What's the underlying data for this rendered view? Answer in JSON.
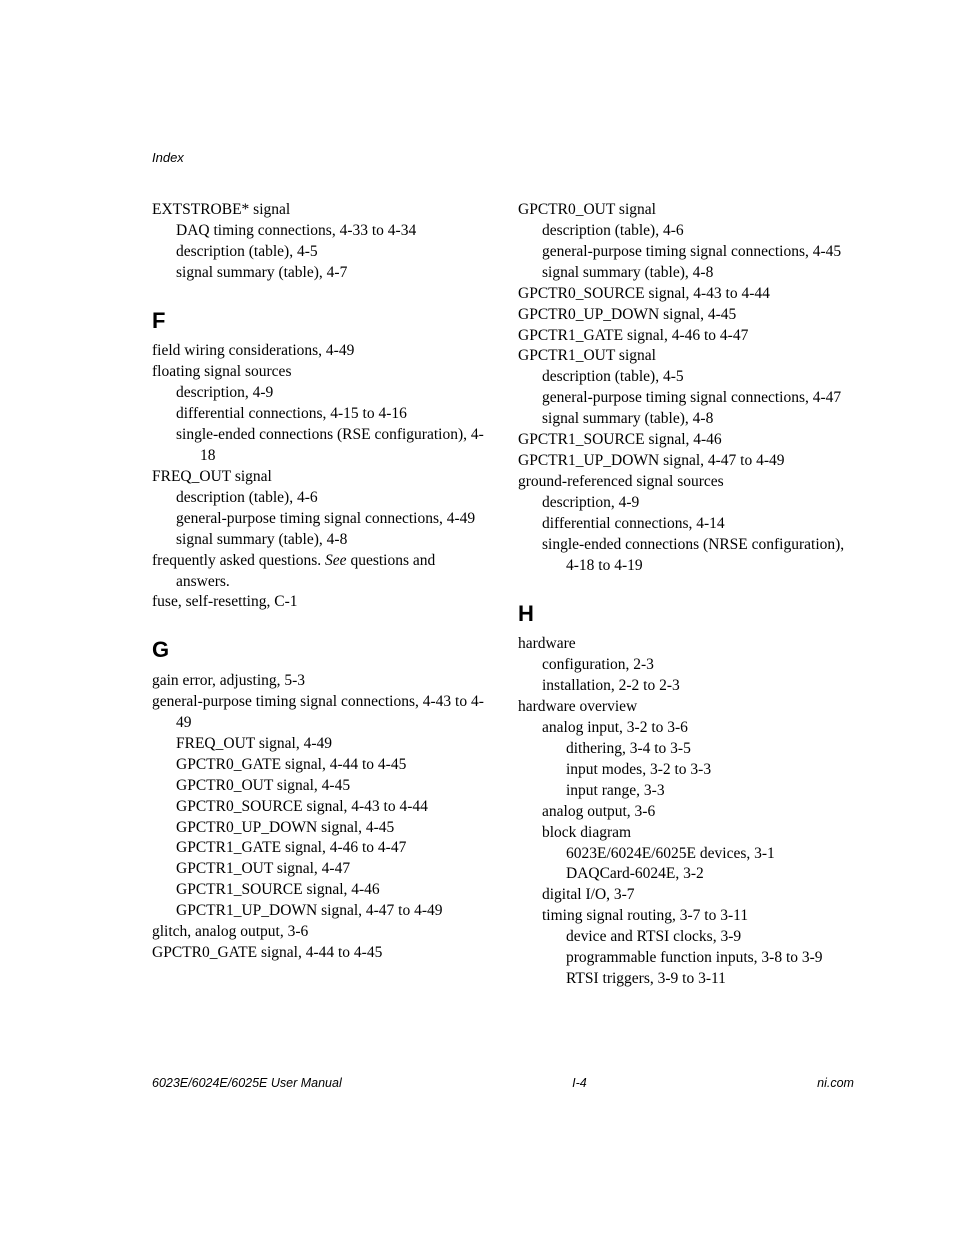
{
  "header": "Index",
  "footer": {
    "left": "6023E/6024E/6025E User Manual",
    "center": "I-4",
    "right": "ni.com"
  },
  "leftCol": [
    {
      "type": "entry",
      "level": 0,
      "text": "EXTSTROBE* signal"
    },
    {
      "type": "entry",
      "level": 1,
      "text": "DAQ timing connections, 4-33 to 4-34"
    },
    {
      "type": "entry",
      "level": 1,
      "text": "description (table), 4-5"
    },
    {
      "type": "entry",
      "level": 1,
      "text": "signal summary (table), 4-7"
    },
    {
      "type": "letter",
      "text": "F"
    },
    {
      "type": "entry",
      "level": 0,
      "text": "field wiring considerations, 4-49"
    },
    {
      "type": "entry",
      "level": 0,
      "text": "floating signal sources"
    },
    {
      "type": "entry",
      "level": 1,
      "text": "description, 4-9"
    },
    {
      "type": "entry",
      "level": 1,
      "text": "differential connections, 4-15 to 4-16"
    },
    {
      "type": "entry",
      "level": 1,
      "text": "single-ended connections (RSE configuration), 4-18"
    },
    {
      "type": "entry",
      "level": 0,
      "text": "FREQ_OUT signal"
    },
    {
      "type": "entry",
      "level": 1,
      "text": "description (table), 4-6"
    },
    {
      "type": "entry",
      "level": 1,
      "text": "general-purpose timing signal connections, 4-49"
    },
    {
      "type": "entry",
      "level": 1,
      "text": "signal summary (table), 4-8"
    },
    {
      "type": "entry-mixed",
      "level": 0,
      "pre": "frequently asked questions. ",
      "italic": "See",
      "post": " questions and answers."
    },
    {
      "type": "entry",
      "level": 0,
      "text": "fuse, self-resetting, C-1"
    },
    {
      "type": "letter",
      "text": "G"
    },
    {
      "type": "entry",
      "level": 0,
      "text": "gain error, adjusting, 5-3"
    },
    {
      "type": "entry",
      "level": 0,
      "text": "general-purpose timing signal connections, 4-43 to 4-49"
    },
    {
      "type": "entry",
      "level": 1,
      "text": "FREQ_OUT signal, 4-49"
    },
    {
      "type": "entry",
      "level": 1,
      "text": "GPCTR0_GATE signal, 4-44 to 4-45"
    },
    {
      "type": "entry",
      "level": 1,
      "text": "GPCTR0_OUT signal, 4-45"
    },
    {
      "type": "entry",
      "level": 1,
      "text": "GPCTR0_SOURCE signal, 4-43 to 4-44"
    },
    {
      "type": "entry",
      "level": 1,
      "text": "GPCTR0_UP_DOWN signal, 4-45"
    },
    {
      "type": "entry",
      "level": 1,
      "text": "GPCTR1_GATE signal, 4-46 to 4-47"
    },
    {
      "type": "entry",
      "level": 1,
      "text": "GPCTR1_OUT signal, 4-47"
    },
    {
      "type": "entry",
      "level": 1,
      "text": "GPCTR1_SOURCE signal, 4-46"
    },
    {
      "type": "entry",
      "level": 1,
      "text": "GPCTR1_UP_DOWN signal, 4-47 to 4-49"
    },
    {
      "type": "entry",
      "level": 0,
      "text": "glitch, analog output, 3-6"
    },
    {
      "type": "entry",
      "level": 0,
      "text": "GPCTR0_GATE signal, 4-44 to 4-45"
    }
  ],
  "rightCol": [
    {
      "type": "entry",
      "level": 0,
      "text": "GPCTR0_OUT signal"
    },
    {
      "type": "entry",
      "level": 1,
      "text": "description (table), 4-6"
    },
    {
      "type": "entry",
      "level": 1,
      "text": "general-purpose timing signal connections, 4-45"
    },
    {
      "type": "entry",
      "level": 1,
      "text": "signal summary (table), 4-8"
    },
    {
      "type": "entry",
      "level": 0,
      "text": "GPCTR0_SOURCE signal, 4-43 to 4-44"
    },
    {
      "type": "entry",
      "level": 0,
      "text": "GPCTR0_UP_DOWN signal, 4-45"
    },
    {
      "type": "entry",
      "level": 0,
      "text": "GPCTR1_GATE signal, 4-46 to 4-47"
    },
    {
      "type": "entry",
      "level": 0,
      "text": "GPCTR1_OUT signal"
    },
    {
      "type": "entry",
      "level": 1,
      "text": "description (table), 4-5"
    },
    {
      "type": "entry",
      "level": 1,
      "text": "general-purpose timing signal connections, 4-47"
    },
    {
      "type": "entry",
      "level": 1,
      "text": "signal summary (table), 4-8"
    },
    {
      "type": "entry",
      "level": 0,
      "text": "GPCTR1_SOURCE signal, 4-46"
    },
    {
      "type": "entry",
      "level": 0,
      "text": "GPCTR1_UP_DOWN signal, 4-47 to 4-49"
    },
    {
      "type": "entry",
      "level": 0,
      "text": "ground-referenced signal sources"
    },
    {
      "type": "entry",
      "level": 1,
      "text": "description, 4-9"
    },
    {
      "type": "entry",
      "level": 1,
      "text": "differential connections, 4-14"
    },
    {
      "type": "entry",
      "level": 1,
      "text": "single-ended connections (NRSE configuration), 4-18 to 4-19"
    },
    {
      "type": "letter",
      "text": "H"
    },
    {
      "type": "entry",
      "level": 0,
      "text": "hardware"
    },
    {
      "type": "entry",
      "level": 1,
      "text": "configuration, 2-3"
    },
    {
      "type": "entry",
      "level": 1,
      "text": "installation, 2-2 to 2-3"
    },
    {
      "type": "entry",
      "level": 0,
      "text": "hardware overview"
    },
    {
      "type": "entry",
      "level": 1,
      "text": "analog input, 3-2 to 3-6"
    },
    {
      "type": "entry",
      "level": 2,
      "text": "dithering, 3-4 to 3-5"
    },
    {
      "type": "entry",
      "level": 2,
      "text": "input modes, 3-2 to 3-3"
    },
    {
      "type": "entry",
      "level": 2,
      "text": "input range, 3-3"
    },
    {
      "type": "entry",
      "level": 1,
      "text": "analog output, 3-6"
    },
    {
      "type": "entry",
      "level": 1,
      "text": "block diagram"
    },
    {
      "type": "entry",
      "level": 2,
      "text": "6023E/6024E/6025E devices, 3-1"
    },
    {
      "type": "entry",
      "level": 2,
      "text": "DAQCard-6024E, 3-2"
    },
    {
      "type": "entry",
      "level": 1,
      "text": "digital I/O, 3-7"
    },
    {
      "type": "entry",
      "level": 1,
      "text": "timing signal routing, 3-7 to 3-11"
    },
    {
      "type": "entry",
      "level": 2,
      "text": "device and RTSI clocks, 3-9"
    },
    {
      "type": "entry",
      "level": 2,
      "text": "programmable function inputs, 3-8 to 3-9"
    },
    {
      "type": "entry",
      "level": 2,
      "text": "RTSI triggers, 3-9 to 3-11"
    }
  ]
}
